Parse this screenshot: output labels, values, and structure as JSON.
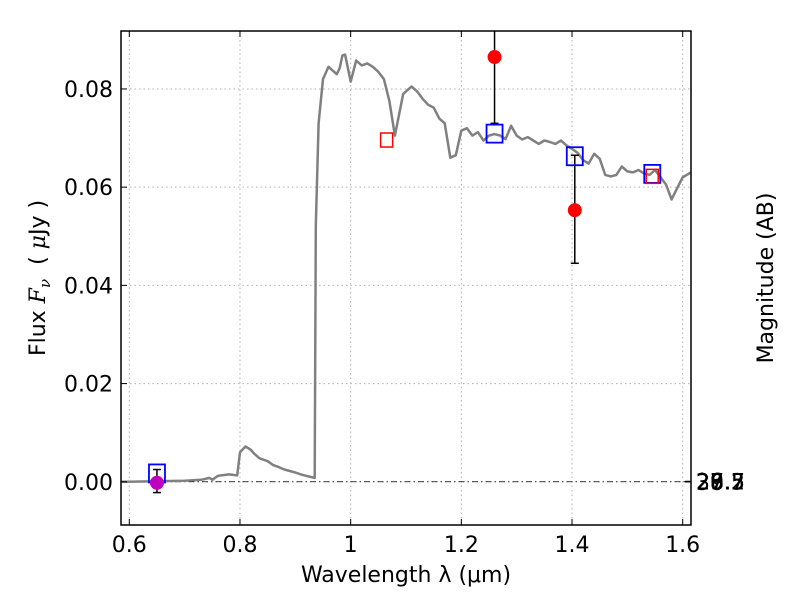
{
  "chart_data": {
    "type": "line",
    "xlabel": "Wavelength  λ (μm)",
    "ylabel": "Flux  F_ν  ( μJy )",
    "ylabel_parts": {
      "prefix": "Flux ",
      "symbol": "F",
      "subscript": "ν",
      "unit_open": "  ( ",
      "unit_mu": "μ",
      "unit_rest": "Jy )"
    },
    "y2label": "Magnitude (AB)",
    "xlim": [
      0.585,
      1.615
    ],
    "ylim": [
      -0.0088,
      0.0918
    ],
    "grid": true,
    "x_ticks": [
      0.6,
      0.8,
      1.0,
      1.2,
      1.4,
      1.6
    ],
    "x_tick_labels": [
      "0.6",
      "0.8",
      "1",
      "1.2",
      "1.4",
      "1.6"
    ],
    "y_ticks": [
      0.0,
      0.02,
      0.04,
      0.06,
      0.08
    ],
    "y_tick_labels": [
      "0.00",
      "0.02",
      "0.04",
      "0.06",
      "0.08"
    ],
    "magnitude_ticks": [
      26.5,
      26.7,
      27,
      27.2,
      27.5,
      28,
      28.5,
      29,
      30
    ],
    "magnitude_tick_labels": [
      "26.5",
      "26.7",
      "27",
      "27.2",
      "27.5",
      "28",
      "28.5",
      "29",
      "30"
    ],
    "series": [
      {
        "style": "line",
        "color": "#808080",
        "x": [
          0.585,
          0.7,
          0.73,
          0.745,
          0.75,
          0.76,
          0.78,
          0.795,
          0.8,
          0.81,
          0.82,
          0.825,
          0.835,
          0.85,
          0.86,
          0.87,
          0.88,
          0.89,
          0.9,
          0.91,
          0.92,
          0.935,
          0.937,
          0.942,
          0.95,
          0.96,
          0.97,
          0.975,
          0.98,
          0.985,
          0.99,
          1.0,
          1.01,
          1.02,
          1.03,
          1.04,
          1.05,
          1.06,
          1.07,
          1.08,
          1.095,
          1.11,
          1.12,
          1.13,
          1.14,
          1.15,
          1.16,
          1.17,
          1.18,
          1.19,
          1.2,
          1.21,
          1.22,
          1.23,
          1.24,
          1.25,
          1.26,
          1.27,
          1.28,
          1.29,
          1.3,
          1.31,
          1.32,
          1.33,
          1.34,
          1.35,
          1.36,
          1.37,
          1.38,
          1.39,
          1.4,
          1.41,
          1.42,
          1.43,
          1.44,
          1.45,
          1.46,
          1.47,
          1.48,
          1.49,
          1.5,
          1.51,
          1.52,
          1.53,
          1.54,
          1.55,
          1.56,
          1.57,
          1.58,
          1.59,
          1.6,
          1.615
        ],
        "y": [
          0.0,
          0.0002,
          0.0004,
          0.0008,
          0.0004,
          0.0012,
          0.0015,
          0.0013,
          0.006,
          0.0072,
          0.0065,
          0.0058,
          0.0048,
          0.0042,
          0.0034,
          0.003,
          0.0025,
          0.0022,
          0.0019,
          0.0015,
          0.0012,
          0.0008,
          0.052,
          0.073,
          0.082,
          0.0845,
          0.0835,
          0.083,
          0.0842,
          0.0868,
          0.087,
          0.0815,
          0.0858,
          0.0848,
          0.0852,
          0.0845,
          0.0835,
          0.082,
          0.0775,
          0.0705,
          0.079,
          0.0805,
          0.0795,
          0.078,
          0.0768,
          0.0762,
          0.074,
          0.073,
          0.066,
          0.0665,
          0.0715,
          0.072,
          0.0705,
          0.0712,
          0.0695,
          0.0705,
          0.0708,
          0.0705,
          0.0698,
          0.0725,
          0.0705,
          0.0697,
          0.0702,
          0.0695,
          0.0688,
          0.0695,
          0.0692,
          0.0688,
          0.0695,
          0.0685,
          0.0678,
          0.067,
          0.0655,
          0.0648,
          0.0668,
          0.0658,
          0.0625,
          0.0622,
          0.0625,
          0.0642,
          0.0632,
          0.063,
          0.0635,
          0.0628,
          0.0625,
          0.0635,
          0.062,
          0.0605,
          0.0575,
          0.0598,
          0.062,
          0.063
        ]
      },
      {
        "style": "markers",
        "marker": "open-square",
        "color": "#0000ff",
        "x": [
          0.65,
          1.26,
          1.405,
          1.545
        ],
        "y": [
          0.0017,
          0.0709,
          0.0663,
          0.0627
        ]
      },
      {
        "style": "markers",
        "marker": "small-open-square",
        "color": "#ff0000",
        "x": [
          1.065,
          1.545
        ],
        "y": [
          0.0696,
          0.0622
        ]
      },
      {
        "style": "markers",
        "marker": "filled-circle",
        "color": "#ff0000",
        "x": [
          1.26,
          1.405
        ],
        "y": [
          0.0865,
          0.0553
        ]
      },
      {
        "style": "markers",
        "marker": "filled-circle",
        "color": "#bf00bf",
        "x": [
          0.65
        ],
        "y": [
          -0.0002
        ]
      }
    ],
    "error_bars": [
      {
        "x": 0.65,
        "low": -0.0022,
        "high": 0.0025
      },
      {
        "x": 1.26,
        "low": 0.073,
        "high": 0.0918
      },
      {
        "x": 1.405,
        "low": 0.0445,
        "high": 0.0665
      }
    ],
    "zero_line_y": 0.0
  }
}
